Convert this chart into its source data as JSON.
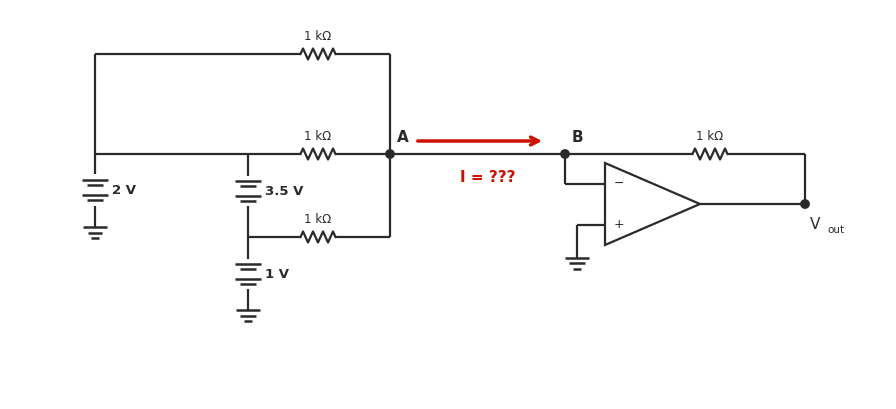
{
  "bg_color": "#ffffff",
  "line_color": "#2a2a2a",
  "red_color": "#cc1100",
  "resistor_label": "1 kΩ",
  "label_2V": "2 V",
  "label_35V": "3.5 V",
  "label_1V": "1 V",
  "label_A": "A",
  "label_B": "B",
  "label_I": "I = ???",
  "label_Vout": "V",
  "label_Vout_sub": "out",
  "label_minus": "−",
  "label_plus": "+"
}
